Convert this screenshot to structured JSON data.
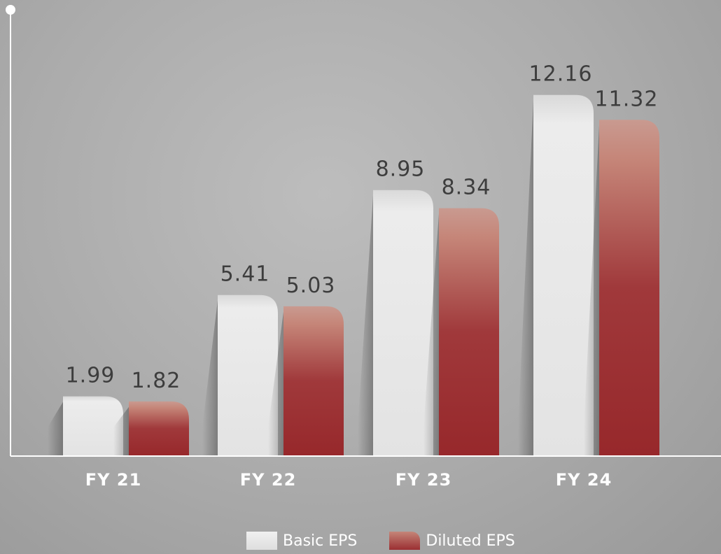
{
  "chart_data": {
    "type": "bar",
    "categories": [
      "FY 21",
      "FY 22",
      "FY 23",
      "FY 24"
    ],
    "series": [
      {
        "name": "Basic EPS",
        "values": [
          1.99,
          5.41,
          8.95,
          12.16
        ],
        "color": "#e6e6e6"
      },
      {
        "name": "Diluted EPS",
        "values": [
          1.82,
          5.03,
          8.34,
          11.32
        ],
        "color": "#9b2f32"
      }
    ],
    "value_labels": [
      [
        "1.99",
        "5.41",
        "8.95",
        "12.16"
      ],
      [
        "1.82",
        "5.03",
        "8.34",
        "11.32"
      ]
    ],
    "ylim": [
      0,
      14.3
    ],
    "grid": false,
    "legend_position": "bottom"
  },
  "legend": {
    "basic_label": "Basic EPS",
    "diluted_label": "Diluted EPS"
  }
}
